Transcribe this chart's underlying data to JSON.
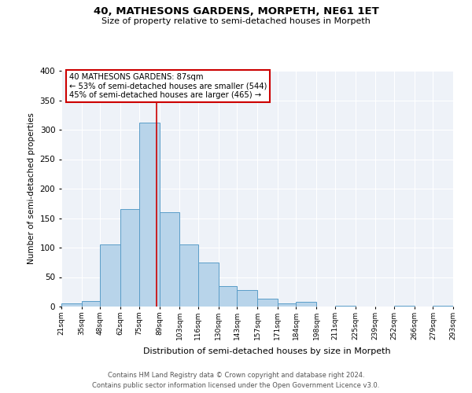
{
  "title": "40, MATHESONS GARDENS, MORPETH, NE61 1ET",
  "subtitle": "Size of property relative to semi-detached houses in Morpeth",
  "xlabel": "Distribution of semi-detached houses by size in Morpeth",
  "ylabel": "Number of semi-detached properties",
  "bin_edges": [
    21,
    35,
    48,
    62,
    75,
    89,
    103,
    116,
    130,
    143,
    157,
    171,
    184,
    198,
    211,
    225,
    239,
    252,
    266,
    279,
    293
  ],
  "bin_labels": [
    "21sqm",
    "35sqm",
    "48sqm",
    "62sqm",
    "75sqm",
    "89sqm",
    "103sqm",
    "116sqm",
    "130sqm",
    "143sqm",
    "157sqm",
    "171sqm",
    "184sqm",
    "198sqm",
    "211sqm",
    "225sqm",
    "239sqm",
    "252sqm",
    "266sqm",
    "279sqm",
    "293sqm"
  ],
  "counts": [
    5,
    10,
    105,
    165,
    312,
    160,
    105,
    75,
    35,
    28,
    14,
    5,
    8,
    0,
    2,
    0,
    0,
    2,
    0,
    2
  ],
  "bar_color": "#b8d4ea",
  "bar_edge_color": "#5a9dc8",
  "property_value": 87,
  "vline_color": "#cc0000",
  "annotation_line1": "40 MATHESONS GARDENS: 87sqm",
  "annotation_line2": "← 53% of semi-detached houses are smaller (544)",
  "annotation_line3": "45% of semi-detached houses are larger (465) →",
  "annotation_box_color": "#ffffff",
  "annotation_box_edge_color": "#cc0000",
  "ylim": [
    0,
    400
  ],
  "yticks": [
    0,
    50,
    100,
    150,
    200,
    250,
    300,
    350,
    400
  ],
  "background_color": "#eef2f8",
  "footer_line1": "Contains HM Land Registry data © Crown copyright and database right 2024.",
  "footer_line2": "Contains public sector information licensed under the Open Government Licence v3.0."
}
